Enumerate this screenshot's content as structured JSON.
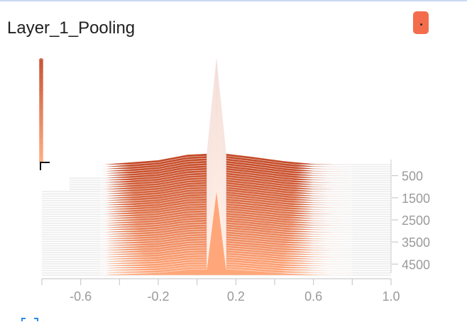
{
  "card": {
    "title": "Layer_1_Pooling",
    "menu_button_color": "#f36d4c"
  },
  "chart_data": {
    "type": "area",
    "title": "Layer_1_Pooling",
    "xlabel": "",
    "ylabel": "",
    "x_ticks": [
      "-0.6",
      "-0.2",
      "0.2",
      "0.6",
      "1.0"
    ],
    "x_tick_values": [
      -0.6,
      -0.2,
      0.2,
      0.6,
      1.0
    ],
    "xlim": [
      -0.8,
      1.0
    ],
    "y_ticks": [
      "500",
      "1500",
      "2500",
      "3500",
      "4500"
    ],
    "y_tick_values": [
      500,
      1500,
      2500,
      3500,
      4500
    ],
    "ylim": [
      0,
      5000
    ],
    "grid": false,
    "colors": {
      "oldest": "#c44a28",
      "newest": "#ffa77a",
      "axis": "#cccccc",
      "tick": "#9a9a9a",
      "background_band": "#ececec"
    },
    "series_summary": {
      "count": 50,
      "steps_range": [
        0,
        5000
      ],
      "peak_x": 0.1,
      "distribution_range": [
        -0.45,
        0.6
      ]
    }
  },
  "icons": {
    "menu": "more-vert-icon",
    "expand": "fullscreen-icon"
  }
}
